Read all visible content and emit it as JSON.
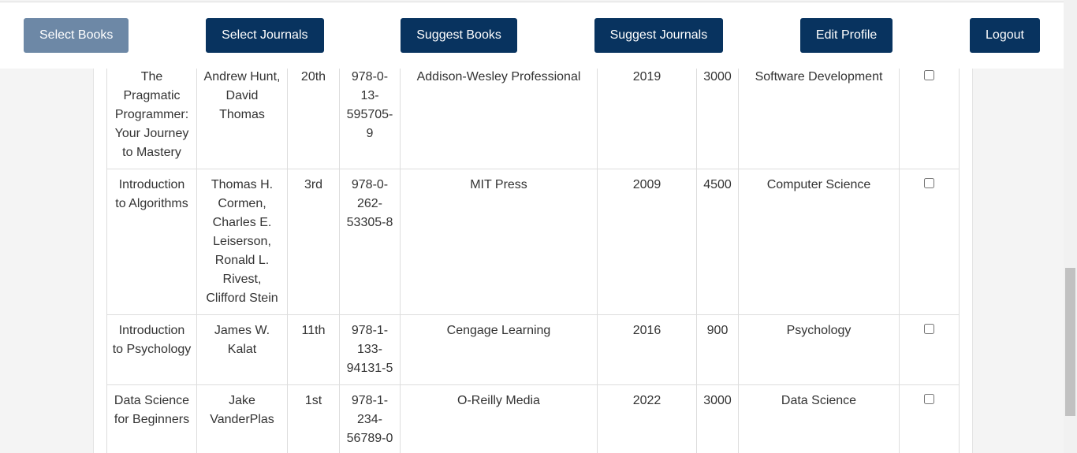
{
  "nav": {
    "buttons": [
      "Select Books",
      "Select Journals",
      "Suggest Books",
      "Suggest Journals",
      "Edit Profile",
      "Logout"
    ]
  },
  "table": {
    "rows": [
      [
        "The Pragmatic Programmer: Your Journey to Mastery",
        "Andrew Hunt, David Thomas",
        "20th",
        "978-0-13-595705-9",
        "Addison-Wesley Professional",
        "2019",
        "3000",
        "Software Development"
      ],
      [
        "Introduction to Algorithms",
        "Thomas H. Cormen, Charles E. Leiserson, Ronald L. Rivest, Clifford Stein",
        "3rd",
        "978-0-262-53305-8",
        "MIT Press",
        "2009",
        "4500",
        "Computer Science"
      ],
      [
        "Introduction to Psychology",
        "James W. Kalat",
        "11th",
        "978-1-133-94131-5",
        "Cengage Learning",
        "2016",
        "900",
        "Psychology"
      ],
      [
        "Data Science for Beginners",
        "Jake VanderPlas",
        "1st",
        "978-1-234-56789-0",
        "O-Reilly Media",
        "2022",
        "3000",
        "Data Science"
      ]
    ]
  }
}
